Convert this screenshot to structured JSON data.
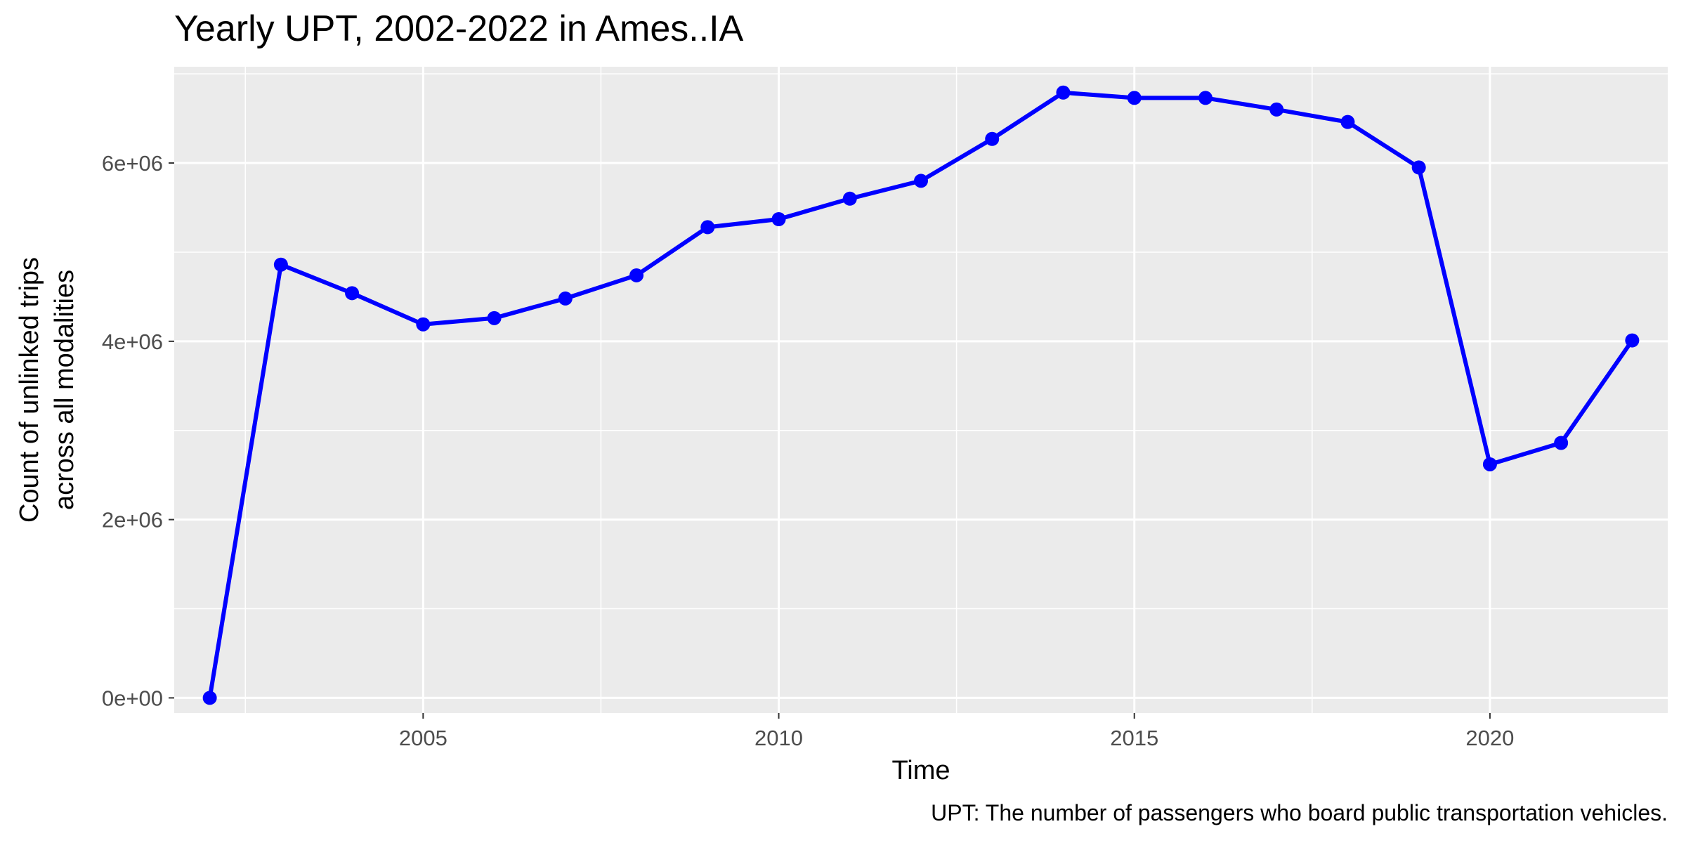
{
  "chart_data": {
    "type": "line",
    "title": "Yearly UPT, 2002-2022 in Ames..IA",
    "xlabel": "Time",
    "ylabel": [
      "Count of unlinked trips",
      "across all modalities"
    ],
    "caption": "UPT: The number of passengers who board public transportation vehicles.",
    "xlim": [
      2001.5,
      2022.5
    ],
    "ylim": [
      -170000,
      7080000
    ],
    "x_ticks": [
      2005,
      2010,
      2015,
      2020
    ],
    "x_tick_labels": [
      "2005",
      "2010",
      "2015",
      "2020"
    ],
    "y_ticks": [
      0,
      2000000,
      4000000,
      6000000
    ],
    "y_tick_labels": [
      "0e+00",
      "2e+06",
      "4e+06",
      "6e+06"
    ],
    "grid": true,
    "series": [
      {
        "color": "#0000ff",
        "x": [
          2002,
          2003,
          2004,
          2005,
          2006,
          2007,
          2008,
          2009,
          2010,
          2011,
          2012,
          2013,
          2014,
          2015,
          2016,
          2017,
          2018,
          2019,
          2020,
          2021,
          2022
        ],
        "values": [
          0,
          4860000,
          4540000,
          4190000,
          4260000,
          4480000,
          4740000,
          5280000,
          5370000,
          5600000,
          5800000,
          6270000,
          6790000,
          6730000,
          6730000,
          6600000,
          6460000,
          5950000,
          2620000,
          2860000,
          4010000
        ]
      }
    ]
  }
}
